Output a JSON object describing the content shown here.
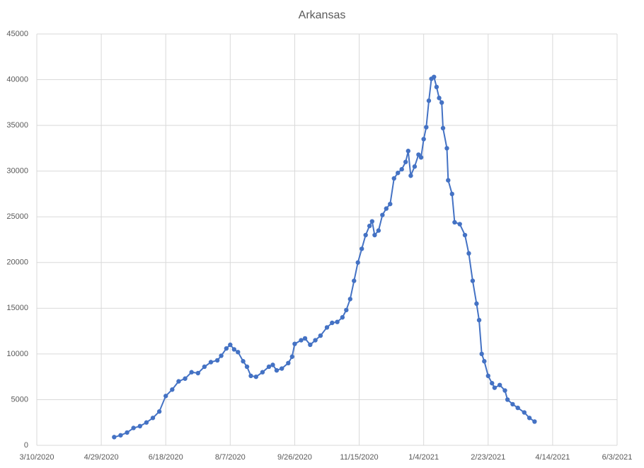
{
  "chart_data": {
    "type": "line",
    "title": "Arkansas",
    "color": "#4472c4",
    "grid": true,
    "x": [
      "5/9/2020",
      "5/14/2020",
      "5/19/2020",
      "5/24/2020",
      "5/29/2020",
      "6/3/2020",
      "6/8/2020",
      "6/13/2020",
      "6/18/2020",
      "6/23/2020",
      "6/28/2020",
      "7/3/2020",
      "7/8/2020",
      "7/13/2020",
      "7/18/2020",
      "7/23/2020",
      "7/28/2020",
      "7/31/2020",
      "8/4/2020",
      "8/7/2020",
      "8/10/2020",
      "8/13/2020",
      "8/17/2020",
      "8/20/2020",
      "8/23/2020",
      "8/27/2020",
      "9/1/2020",
      "9/6/2020",
      "9/9/2020",
      "9/12/2020",
      "9/16/2020",
      "9/21/2020",
      "9/24/2020",
      "9/26/2020",
      "10/1/2020",
      "10/4/2020",
      "10/8/2020",
      "10/12/2020",
      "10/16/2020",
      "10/21/2020",
      "10/25/2020",
      "10/29/2020",
      "11/2/2020",
      "11/5/2020",
      "11/8/2020",
      "11/11/2020",
      "11/14/2020",
      "11/17/2020",
      "11/20/2020",
      "11/23/2020",
      "11/25/2020",
      "11/27/2020",
      "11/30/2020",
      "12/3/2020",
      "12/6/2020",
      "12/9/2020",
      "12/12/2020",
      "12/15/2020",
      "12/18/2020",
      "12/21/2020",
      "12/23/2020",
      "12/25/2020",
      "12/28/2020",
      "12/31/2020",
      "1/2/2021",
      "1/4/2021",
      "1/6/2021",
      "1/8/2021",
      "1/10/2021",
      "1/12/2021",
      "1/14/2021",
      "1/16/2021",
      "1/18/2021",
      "1/19/2021",
      "1/22/2021",
      "1/23/2021",
      "1/26/2021",
      "1/28/2021",
      "2/1/2021",
      "2/5/2021",
      "2/8/2021",
      "2/11/2021",
      "2/14/2021",
      "2/16/2021",
      "2/18/2021",
      "2/20/2021",
      "2/23/2021",
      "2/26/2021",
      "2/28/2021",
      "3/4/2021",
      "3/8/2021",
      "3/10/2021",
      "3/14/2021",
      "3/18/2021",
      "3/23/2021",
      "3/27/2021",
      "3/31/2021"
    ],
    "values": [
      900,
      1100,
      1400,
      1900,
      2100,
      2500,
      3000,
      3700,
      5400,
      6100,
      7000,
      7300,
      8000,
      7900,
      8600,
      9100,
      9300,
      9800,
      10600,
      11000,
      10500,
      10200,
      9200,
      8600,
      7600,
      7500,
      8000,
      8600,
      8800,
      8200,
      8400,
      9000,
      9700,
      11100,
      11500,
      11700,
      11000,
      11500,
      12000,
      12900,
      13400,
      13500,
      14000,
      14800,
      16000,
      18000,
      20000,
      21500,
      23000,
      24000,
      24500,
      23000,
      23500,
      25200,
      25900,
      26400,
      29200,
      29800,
      30200,
      31000,
      32200,
      29500,
      30500,
      31800,
      31500,
      33500,
      34800,
      37700,
      40100,
      40300,
      39200,
      38000,
      37500,
      34700,
      32500,
      29000,
      27500,
      24400,
      24200,
      23000,
      21000,
      18000,
      15500,
      13700,
      10000,
      9200,
      7600,
      6800,
      6300,
      6600,
      6000,
      5000,
      4500,
      4100,
      3600,
      3000,
      2600
    ],
    "xlim": [
      "3/10/2020",
      "6/3/2021"
    ],
    "xticks": [
      "3/10/2020",
      "4/29/2020",
      "6/18/2020",
      "8/7/2020",
      "9/26/2020",
      "11/15/2020",
      "1/4/2021",
      "2/23/2021",
      "4/14/2021",
      "6/3/2021"
    ],
    "ylim": [
      0,
      45000
    ],
    "yticks": [
      0,
      5000,
      10000,
      15000,
      20000,
      25000,
      30000,
      35000,
      40000,
      45000
    ]
  }
}
